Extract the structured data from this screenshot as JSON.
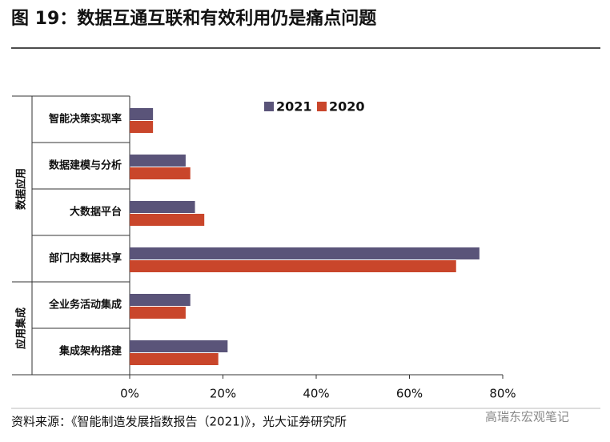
{
  "chart_data": {
    "type": "bar",
    "orientation": "horizontal",
    "title": "图 19：数据互通互联和有效利用仍是痛点问题",
    "categories": [
      "智能决策实现率",
      "数据建模与分析",
      "大数据平台",
      "部门内数据共享",
      "全业务活动集成",
      "集成架构搭建"
    ],
    "category_groups": [
      "数据应用",
      "数据应用",
      "数据应用",
      "数据应用",
      "应用集成",
      "应用集成"
    ],
    "series": [
      {
        "name": "2021",
        "color": "#5a5479",
        "values": [
          5,
          12,
          14,
          75,
          13,
          21
        ]
      },
      {
        "name": "2020",
        "color": "#c9462b",
        "values": [
          5,
          13,
          16,
          70,
          12,
          19
        ]
      }
    ],
    "xlim": [
      0,
      80
    ],
    "xticks": [
      {
        "value": 0,
        "label": "0%"
      },
      {
        "value": 20,
        "label": "20%"
      },
      {
        "value": 40,
        "label": "40%"
      },
      {
        "value": 60,
        "label": "60%"
      },
      {
        "value": 80,
        "label": "80%"
      }
    ],
    "legend": "top",
    "source": "资料来源：《智能制造发展指数报告（2021)》，光大证券研究所",
    "watermark": "高瑞东宏观笔记"
  }
}
